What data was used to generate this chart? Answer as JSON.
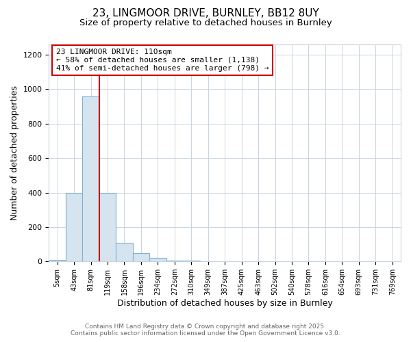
{
  "title_line1": "23, LINGMOOR DRIVE, BURNLEY, BB12 8UY",
  "title_line2": "Size of property relative to detached houses in Burnley",
  "xlabel": "Distribution of detached houses by size in Burnley",
  "ylabel": "Number of detached properties",
  "bin_labels": [
    "5sqm",
    "43sqm",
    "81sqm",
    "119sqm",
    "158sqm",
    "196sqm",
    "234sqm",
    "272sqm",
    "310sqm",
    "349sqm",
    "387sqm",
    "425sqm",
    "463sqm",
    "502sqm",
    "540sqm",
    "578sqm",
    "616sqm",
    "654sqm",
    "693sqm",
    "731sqm",
    "769sqm"
  ],
  "bar_values": [
    10,
    400,
    960,
    400,
    110,
    50,
    20,
    5,
    3,
    0,
    0,
    0,
    0,
    0,
    0,
    0,
    0,
    0,
    0,
    0,
    0
  ],
  "bar_color": "#d6e4f0",
  "bar_edge_color": "#7fb0d4",
  "annotation_line1": "23 LINGMOOR DRIVE: 110sqm",
  "annotation_line2": "← 58% of detached houses are smaller (1,138)",
  "annotation_line3": "41% of semi-detached houses are larger (798) →",
  "vline_color": "#cc0000",
  "annotation_box_color": "#ffffff",
  "annotation_box_edge": "#cc0000",
  "ylim": [
    0,
    1260
  ],
  "yticks": [
    0,
    200,
    400,
    600,
    800,
    1000,
    1200
  ],
  "footer_line1": "Contains HM Land Registry data © Crown copyright and database right 2025.",
  "footer_line2": "Contains public sector information licensed under the Open Government Licence v3.0.",
  "bg_color": "#ffffff",
  "plot_bg_color": "#ffffff",
  "grid_color": "#c8d4de"
}
